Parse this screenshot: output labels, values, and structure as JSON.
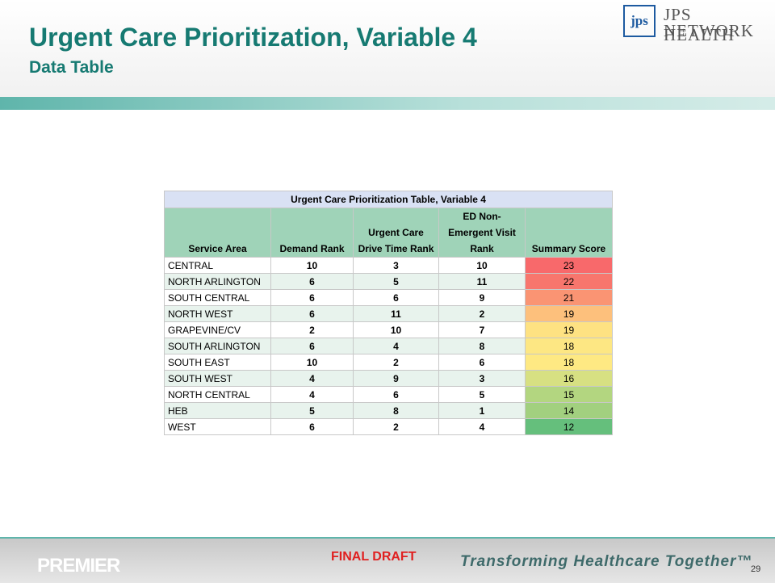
{
  "header": {
    "title": "Urgent Care Prioritization, Variable 4",
    "subtitle": "Data Table",
    "logo": [
      "JPS HEALTH",
      "NETWORK"
    ]
  },
  "table": {
    "title": "Urgent Care Prioritization Table, Variable 4",
    "columns": [
      "Service Area",
      "Demand Rank",
      "Urgent Care Drive Time Rank",
      "ED Non-Emergent Visit Rank",
      "Summary Score"
    ],
    "rows": [
      [
        "CENTRAL",
        "10",
        "3",
        "10",
        "23"
      ],
      [
        "NORTH ARLINGTON",
        "6",
        "5",
        "11",
        "22"
      ],
      [
        "SOUTH CENTRAL",
        "6",
        "6",
        "9",
        "21"
      ],
      [
        "NORTH WEST",
        "6",
        "11",
        "2",
        "19"
      ],
      [
        "GRAPEVINE/CV",
        "2",
        "10",
        "7",
        "19"
      ],
      [
        "SOUTH ARLINGTON",
        "6",
        "4",
        "8",
        "18"
      ],
      [
        "SOUTH EAST",
        "10",
        "2",
        "6",
        "18"
      ],
      [
        "SOUTH WEST",
        "4",
        "9",
        "3",
        "16"
      ],
      [
        "NORTH CENTRAL",
        "4",
        "6",
        "5",
        "15"
      ],
      [
        "HEB",
        "5",
        "8",
        "1",
        "14"
      ],
      [
        "WEST",
        "6",
        "2",
        "4",
        "12"
      ]
    ],
    "summary_colors": [
      "#f8696b",
      "#f8766d",
      "#fa9473",
      "#fdc07c",
      "#fee282",
      "#fde783",
      "#fee983",
      "#d7e082",
      "#b3d680",
      "#a2d07f",
      "#65bf7c"
    ]
  },
  "footer": {
    "brand": "PREMIER",
    "status": "FINAL DRAFT",
    "tagline": "Transforming Healthcare Together™",
    "page": "29"
  }
}
